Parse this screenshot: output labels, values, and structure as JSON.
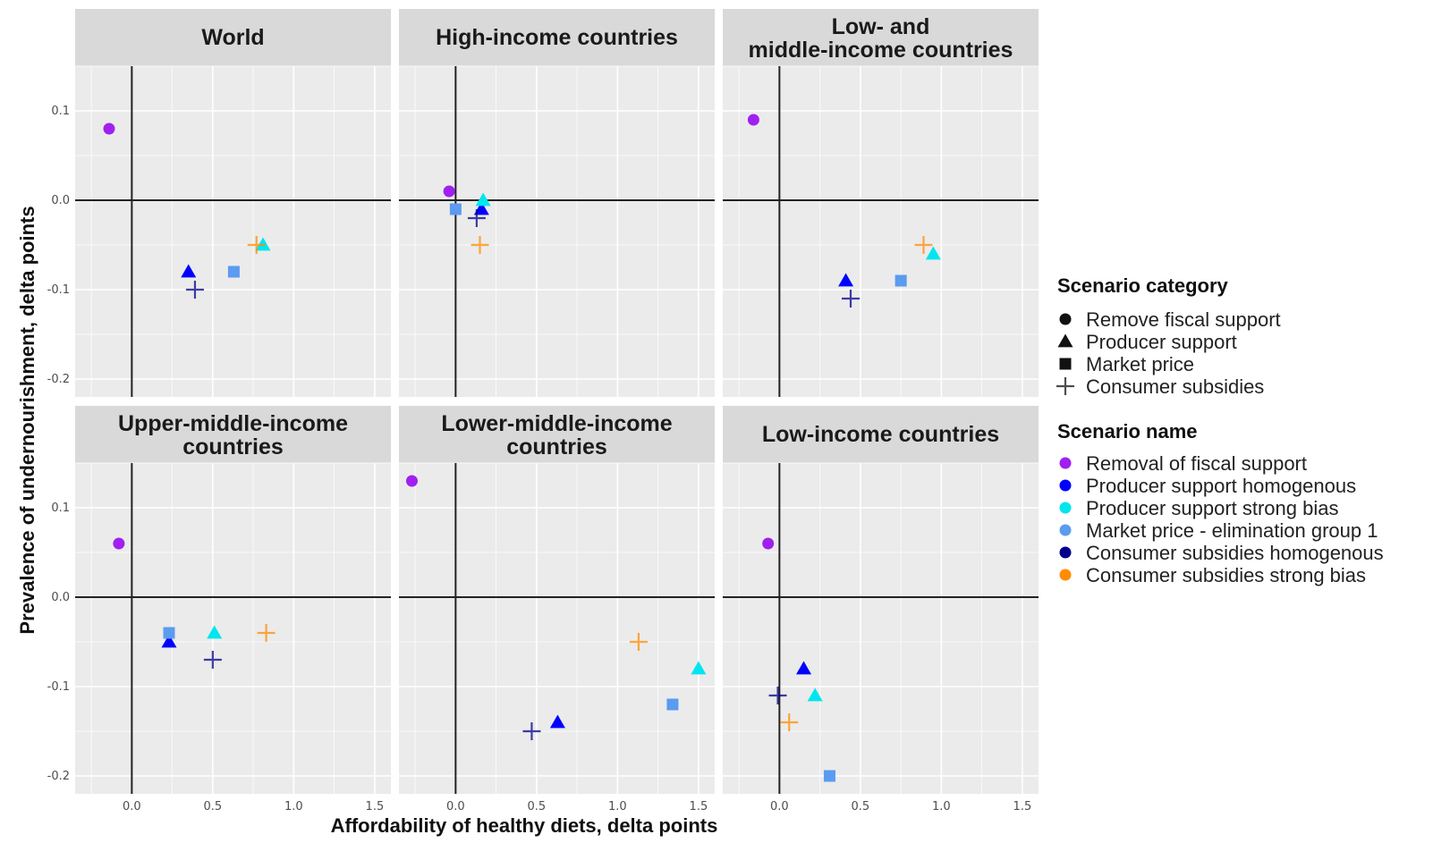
{
  "chart_data": {
    "type": "scatter",
    "xlabel": "Affordability of healthy diets, delta points",
    "ylabel": "Prevalence of undernourishment, delta points",
    "xlim": [
      -0.35,
      1.6
    ],
    "ylim": [
      -0.22,
      0.15
    ],
    "x_ticks": [
      0.0,
      0.5,
      1.0,
      1.5
    ],
    "x_tick_labels": [
      "0.0",
      "0.5",
      "1.0",
      "1.5"
    ],
    "y_ticks": [
      0.1,
      0.0,
      -0.1,
      -0.2
    ],
    "y_tick_labels": [
      "0.1",
      "0.0",
      "-0.1",
      "-0.2"
    ],
    "grid": true,
    "reference_lines": {
      "x": 0,
      "y": 0
    },
    "legend_placement": "right",
    "legend_category": {
      "title": "Scenario category",
      "items": [
        {
          "label": "Remove fiscal support",
          "shape": "circle"
        },
        {
          "label": "Producer support",
          "shape": "triangle"
        },
        {
          "label": "Market price",
          "shape": "square"
        },
        {
          "label": "Consumer subsidies",
          "shape": "plus"
        }
      ]
    },
    "legend_name": {
      "title": "Scenario name",
      "items": [
        {
          "label": "Removal of fiscal support",
          "color": "#a020f0"
        },
        {
          "label": "Producer support homogenous",
          "color": "#0000ff"
        },
        {
          "label": "Producer support strong bias",
          "color": "#00e5ee"
        },
        {
          "label": "Market price - elimination group 1",
          "color": "#5b9bf0"
        },
        {
          "label": "Consumer subsidies homogenous",
          "color": "#00008b"
        },
        {
          "label": "Consumer subsidies strong bias",
          "color": "#ff8c00"
        }
      ]
    },
    "panels": [
      {
        "title": "World",
        "points": [
          {
            "scenario": "Removal of fiscal support",
            "shape": "circle",
            "color": "#a020f0",
            "x": -0.14,
            "y": 0.08
          },
          {
            "scenario": "Producer support homogenous",
            "shape": "triangle",
            "color": "#0000ff",
            "x": 0.35,
            "y": -0.08
          },
          {
            "scenario": "Producer support strong bias",
            "shape": "triangle",
            "color": "#00e5ee",
            "x": 0.81,
            "y": -0.05
          },
          {
            "scenario": "Market price - elimination group 1",
            "shape": "square",
            "color": "#5b9bf0",
            "x": 0.63,
            "y": -0.08
          },
          {
            "scenario": "Consumer subsidies homogenous",
            "shape": "plus",
            "color": "#00008b",
            "x": 0.39,
            "y": -0.1
          },
          {
            "scenario": "Consumer subsidies strong bias",
            "shape": "plus",
            "color": "#ff8c00",
            "x": 0.77,
            "y": -0.05
          }
        ]
      },
      {
        "title": "High-income countries",
        "points": [
          {
            "scenario": "Removal of fiscal support",
            "shape": "circle",
            "color": "#a020f0",
            "x": -0.04,
            "y": 0.01
          },
          {
            "scenario": "Producer support homogenous",
            "shape": "triangle",
            "color": "#0000ff",
            "x": 0.16,
            "y": -0.01
          },
          {
            "scenario": "Producer support strong bias",
            "shape": "triangle",
            "color": "#00e5ee",
            "x": 0.17,
            "y": 0.0
          },
          {
            "scenario": "Market price - elimination group 1",
            "shape": "square",
            "color": "#5b9bf0",
            "x": 0.0,
            "y": -0.01
          },
          {
            "scenario": "Consumer subsidies homogenous",
            "shape": "plus",
            "color": "#00008b",
            "x": 0.13,
            "y": -0.02
          },
          {
            "scenario": "Consumer subsidies strong bias",
            "shape": "plus",
            "color": "#ff8c00",
            "x": 0.15,
            "y": -0.05
          }
        ]
      },
      {
        "title": "Low- and\nmiddle-income countries",
        "points": [
          {
            "scenario": "Removal of fiscal support",
            "shape": "circle",
            "color": "#a020f0",
            "x": -0.16,
            "y": 0.09
          },
          {
            "scenario": "Producer support homogenous",
            "shape": "triangle",
            "color": "#0000ff",
            "x": 0.41,
            "y": -0.09
          },
          {
            "scenario": "Producer support strong bias",
            "shape": "triangle",
            "color": "#00e5ee",
            "x": 0.95,
            "y": -0.06
          },
          {
            "scenario": "Market price - elimination group 1",
            "shape": "square",
            "color": "#5b9bf0",
            "x": 0.75,
            "y": -0.09
          },
          {
            "scenario": "Consumer subsidies homogenous",
            "shape": "plus",
            "color": "#00008b",
            "x": 0.44,
            "y": -0.11
          },
          {
            "scenario": "Consumer subsidies strong bias",
            "shape": "plus",
            "color": "#ff8c00",
            "x": 0.89,
            "y": -0.05
          }
        ]
      },
      {
        "title": "Upper-middle-income\ncountries",
        "points": [
          {
            "scenario": "Removal of fiscal support",
            "shape": "circle",
            "color": "#a020f0",
            "x": -0.08,
            "y": 0.06
          },
          {
            "scenario": "Producer support homogenous",
            "shape": "triangle",
            "color": "#0000ff",
            "x": 0.23,
            "y": -0.05
          },
          {
            "scenario": "Producer support strong bias",
            "shape": "triangle",
            "color": "#00e5ee",
            "x": 0.51,
            "y": -0.04
          },
          {
            "scenario": "Market price - elimination group 1",
            "shape": "square",
            "color": "#5b9bf0",
            "x": 0.23,
            "y": -0.04
          },
          {
            "scenario": "Consumer subsidies homogenous",
            "shape": "plus",
            "color": "#00008b",
            "x": 0.5,
            "y": -0.07
          },
          {
            "scenario": "Consumer subsidies strong bias",
            "shape": "plus",
            "color": "#ff8c00",
            "x": 0.83,
            "y": -0.04
          }
        ]
      },
      {
        "title": "Lower-middle-income\ncountries",
        "points": [
          {
            "scenario": "Removal of fiscal support",
            "shape": "circle",
            "color": "#a020f0",
            "x": -0.27,
            "y": 0.13
          },
          {
            "scenario": "Producer support homogenous",
            "shape": "triangle",
            "color": "#0000ff",
            "x": 0.63,
            "y": -0.14
          },
          {
            "scenario": "Producer support strong bias",
            "shape": "triangle",
            "color": "#00e5ee",
            "x": 1.5,
            "y": -0.08
          },
          {
            "scenario": "Market price - elimination group 1",
            "shape": "square",
            "color": "#5b9bf0",
            "x": 1.34,
            "y": -0.12
          },
          {
            "scenario": "Consumer subsidies homogenous",
            "shape": "plus",
            "color": "#00008b",
            "x": 0.47,
            "y": -0.15
          },
          {
            "scenario": "Consumer subsidies strong bias",
            "shape": "plus",
            "color": "#ff8c00",
            "x": 1.13,
            "y": -0.05
          }
        ]
      },
      {
        "title": "Low-income countries",
        "points": [
          {
            "scenario": "Removal of fiscal support",
            "shape": "circle",
            "color": "#a020f0",
            "x": -0.07,
            "y": 0.06
          },
          {
            "scenario": "Producer support homogenous",
            "shape": "triangle",
            "color": "#0000ff",
            "x": 0.15,
            "y": -0.08
          },
          {
            "scenario": "Producer support strong bias",
            "shape": "triangle",
            "color": "#00e5ee",
            "x": 0.22,
            "y": -0.11
          },
          {
            "scenario": "Market price - elimination group 1",
            "shape": "square",
            "color": "#5b9bf0",
            "x": 0.31,
            "y": -0.2
          },
          {
            "scenario": "Consumer subsidies homogenous",
            "shape": "plus",
            "color": "#00008b",
            "x": -0.01,
            "y": -0.11
          },
          {
            "scenario": "Consumer subsidies strong bias",
            "shape": "plus",
            "color": "#ff8c00",
            "x": 0.06,
            "y": -0.14
          }
        ]
      }
    ]
  },
  "colors": {
    "panel_background": "#ebebeb",
    "strip_background": "#d9d9d9",
    "grid": "#ffffff",
    "reference_line": "#222222"
  }
}
